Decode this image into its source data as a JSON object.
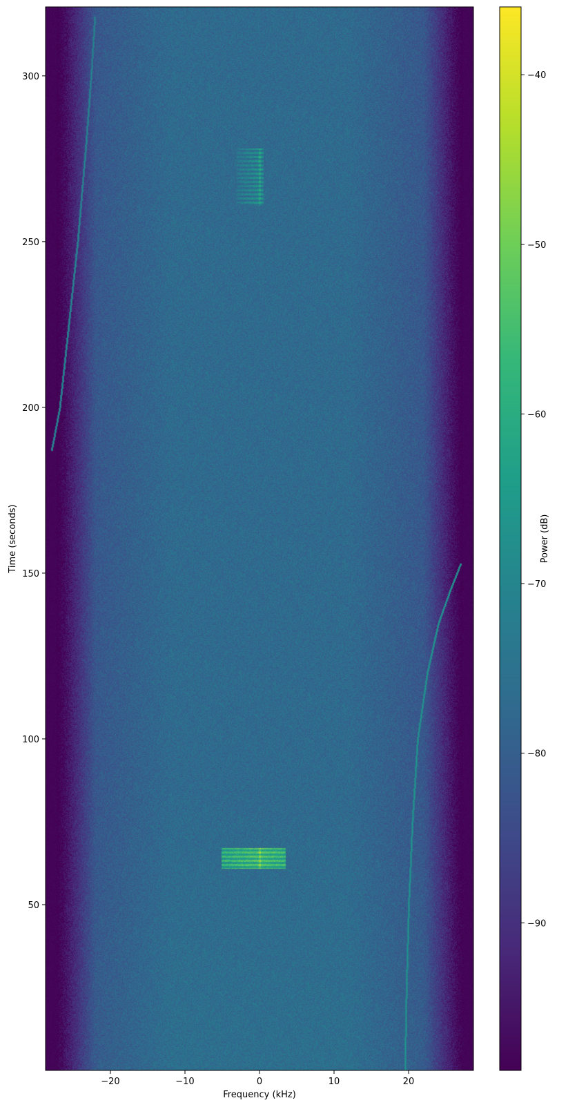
{
  "chart_data": {
    "type": "heatmap",
    "title": "",
    "xlabel": "Frequency (kHz)",
    "ylabel": "Time (seconds)",
    "xlim": [
      -28.7,
      28.7
    ],
    "ylim": [
      0,
      320.8
    ],
    "xticks": [
      -20,
      -10,
      0,
      10,
      20
    ],
    "xtick_labels": [
      "−20",
      "−10",
      "0",
      "10",
      "20"
    ],
    "yticks": [
      50,
      100,
      150,
      200,
      250,
      300
    ],
    "ytick_labels": [
      "50",
      "100",
      "150",
      "200",
      "250",
      "300"
    ],
    "grid": false,
    "colormap": "viridis",
    "colorbar": {
      "label": "Power (dB)",
      "range": [
        -98.7,
        -36.0
      ],
      "ticks": [
        -40,
        -50,
        -60,
        -70,
        -80,
        -90
      ],
      "tick_labels": [
        "−40",
        "−50",
        "−60",
        "−70",
        "−80",
        "−90"
      ],
      "placement": "right"
    },
    "noise_floor_db": -77,
    "band_edge_khz": 26,
    "traces": [
      {
        "points": [
          [
            19.5,
            0
          ],
          [
            19.7,
            25
          ],
          [
            20.0,
            50
          ],
          [
            20.5,
            75
          ],
          [
            21.2,
            100
          ],
          [
            22.5,
            120
          ],
          [
            24.0,
            135
          ],
          [
            25.6,
            145
          ],
          [
            27.0,
            153
          ]
        ],
        "level_db": -66
      },
      {
        "points": [
          [
            -27.9,
            187
          ],
          [
            -26.8,
            200
          ],
          [
            -25.6,
            225
          ],
          [
            -24.4,
            250
          ],
          [
            -23.3,
            279
          ],
          [
            -22.6,
            300
          ],
          [
            -22.1,
            318
          ]
        ],
        "level_db": -70
      }
    ],
    "bursts": [
      {
        "f_range": [
          -5,
          3.5
        ],
        "t_range": [
          61,
          67
        ],
        "level_db": -52
      },
      {
        "f_range": [
          -3,
          0.5
        ],
        "t_range": [
          261,
          278
        ],
        "level_db": -66
      }
    ]
  }
}
